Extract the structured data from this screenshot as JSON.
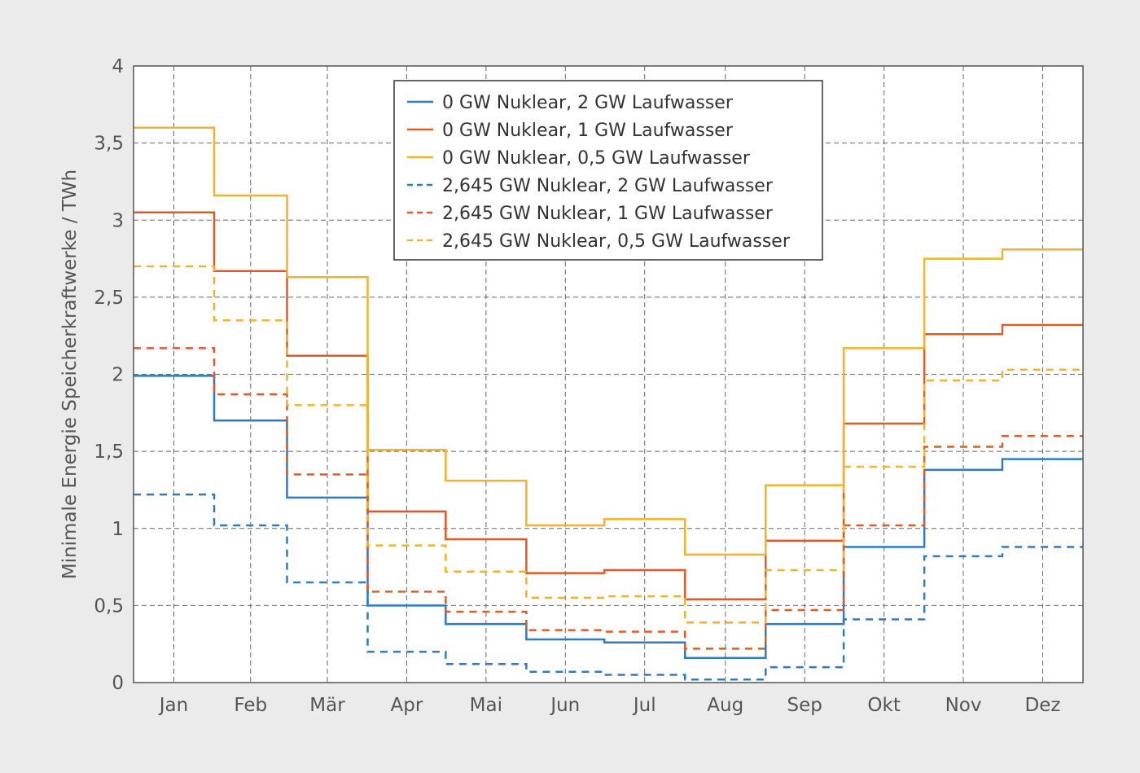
{
  "chart_data": {
    "type": "line",
    "step": true,
    "ylabel": "Minimale Energie Speicherkraftwerke / TWh",
    "ylim": [
      0,
      4
    ],
    "yticks": [
      0,
      0.5,
      1,
      1.5,
      2,
      2.5,
      3,
      3.5,
      4
    ],
    "ytick_labels": [
      "0",
      "0,5",
      "1",
      "1,5",
      "2",
      "2,5",
      "3",
      "3,5",
      "4"
    ],
    "categories": [
      "Jan",
      "Feb",
      "Mär",
      "Apr",
      "Mai",
      "Jun",
      "Jul",
      "Aug",
      "Sep",
      "Okt",
      "Nov",
      "Dez"
    ],
    "grid": true,
    "legend_position": "top-center",
    "series": [
      {
        "name": "0 GW Nuklear, 2 GW Laufwasser",
        "color": "#2e7bc4",
        "dashed": false,
        "values": [
          1.99,
          1.7,
          1.2,
          0.5,
          0.38,
          0.28,
          0.26,
          0.16,
          0.38,
          0.88,
          1.38,
          1.45
        ]
      },
      {
        "name": "0 GW Nuklear, 1 GW Laufwasser",
        "color": "#e05a26",
        "dashed": false,
        "values": [
          3.05,
          2.67,
          2.12,
          1.11,
          0.93,
          0.71,
          0.73,
          0.54,
          0.92,
          1.68,
          2.26,
          2.32
        ]
      },
      {
        "name": "0 GW Nuklear, 0,5 GW Laufwasser",
        "color": "#f3b22c",
        "dashed": false,
        "values": [
          3.6,
          3.16,
          2.63,
          1.51,
          1.31,
          1.02,
          1.06,
          0.83,
          1.28,
          2.17,
          2.75,
          2.81
        ]
      },
      {
        "name": "2,645 GW Nuklear, 2 GW Laufwasser",
        "color": "#2e7bc4",
        "dashed": true,
        "values": [
          1.22,
          1.02,
          0.65,
          0.2,
          0.12,
          0.07,
          0.05,
          0.02,
          0.1,
          0.41,
          0.82,
          0.88
        ]
      },
      {
        "name": "2,645 GW Nuklear, 1 GW Laufwasser",
        "color": "#e05a26",
        "dashed": true,
        "values": [
          2.17,
          1.87,
          1.35,
          0.59,
          0.46,
          0.34,
          0.33,
          0.22,
          0.47,
          1.02,
          1.53,
          1.6
        ]
      },
      {
        "name": "2,645 GW Nuklear, 0,5 GW Laufwasser",
        "color": "#f3b22c",
        "dashed": true,
        "values": [
          2.7,
          2.35,
          1.8,
          0.89,
          0.72,
          0.55,
          0.56,
          0.39,
          0.73,
          1.4,
          1.96,
          2.03
        ]
      }
    ]
  }
}
